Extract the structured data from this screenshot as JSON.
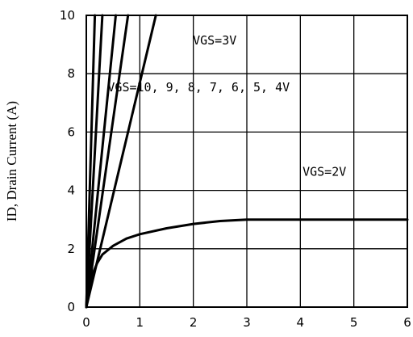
{
  "chart_data": {
    "type": "line",
    "title": "",
    "xlabel": "",
    "ylabel": "ID, Drain Current (A)",
    "xlim": [
      0,
      6
    ],
    "ylim": [
      0,
      10
    ],
    "x_ticks": [
      "0",
      "1",
      "2",
      "3",
      "4",
      "5",
      "6"
    ],
    "y_ticks": [
      "0",
      "2",
      "4",
      "6",
      "8",
      "10"
    ],
    "grid": true,
    "annotations": [
      {
        "text": "VGS=3V",
        "x": 2.4,
        "y": 9.0
      },
      {
        "text": "VGS=10, 9, 8, 7, 6, 5, 4V",
        "x": 2.1,
        "y": 7.4
      },
      {
        "text": "VGS=2V",
        "x": 4.45,
        "y": 4.5
      }
    ],
    "series": [
      {
        "x": [
          0,
          0.16
        ],
        "y": [
          0,
          10
        ]
      },
      {
        "x": [
          0,
          0.3
        ],
        "y": [
          0,
          10
        ]
      },
      {
        "x": [
          0,
          0.55
        ],
        "y": [
          0,
          10
        ]
      },
      {
        "x": [
          0,
          0.78
        ],
        "y": [
          0,
          10
        ]
      },
      {
        "x": [
          0,
          1.3
        ],
        "y": [
          0,
          10
        ]
      },
      {
        "x": [
          0,
          0.05,
          0.1,
          0.2,
          0.3,
          0.5,
          0.75,
          1.0,
          1.5,
          2.0,
          2.5,
          3.0,
          3.5,
          4.0,
          5.0,
          6.0
        ],
        "y": [
          0,
          0.65,
          1.05,
          1.5,
          1.8,
          2.1,
          2.35,
          2.5,
          2.7,
          2.85,
          2.95,
          3.0,
          3.0,
          3.0,
          3.0,
          3.0
        ]
      }
    ]
  }
}
